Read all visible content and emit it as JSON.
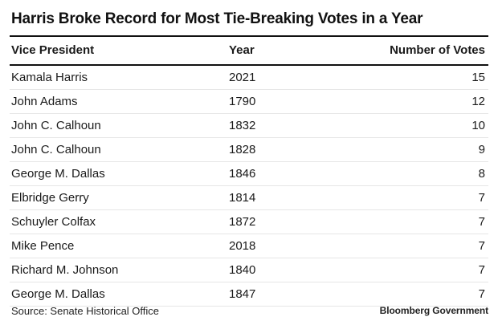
{
  "chart_data": {
    "type": "table",
    "title": "Harris Broke Record for Most Tie-Breaking Votes in a Year",
    "columns": [
      "Vice President",
      "Year",
      "Number of Votes"
    ],
    "rows": [
      [
        "Kamala Harris",
        "2021",
        "15"
      ],
      [
        "John Adams",
        "1790",
        "12"
      ],
      [
        "John C. Calhoun",
        "1832",
        "10"
      ],
      [
        "John C. Calhoun",
        "1828",
        "9"
      ],
      [
        "George M. Dallas",
        "1846",
        "8"
      ],
      [
        "Elbridge Gerry",
        "1814",
        "7"
      ],
      [
        "Schuyler Colfax",
        "1872",
        "7"
      ],
      [
        "Mike Pence",
        "2018",
        "7"
      ],
      [
        "Richard M. Johnson",
        "1840",
        "7"
      ],
      [
        "George M. Dallas",
        "1847",
        "7"
      ]
    ]
  },
  "footer": {
    "source": "Source: Senate Historical Office",
    "brand": "Bloomberg Government"
  }
}
